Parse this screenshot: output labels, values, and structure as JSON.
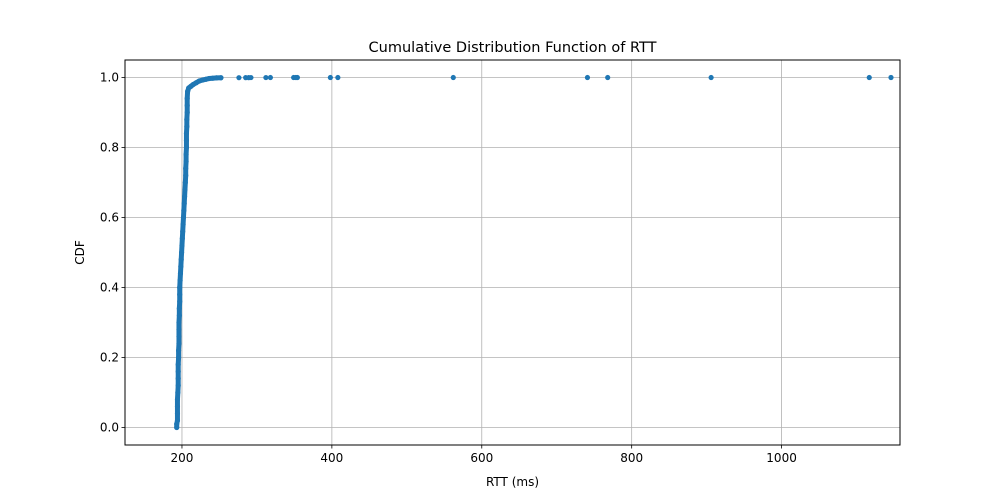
{
  "chart_data": {
    "type": "scatter",
    "title": "Cumulative Distribution Function of RTT",
    "xlabel": "RTT (ms)",
    "ylabel": "CDF",
    "xlim": [
      124,
      1158
    ],
    "ylim": [
      -0.05,
      1.05
    ],
    "x_ticks": [
      {
        "value": 200,
        "label": "200"
      },
      {
        "value": 400,
        "label": "400"
      },
      {
        "value": 600,
        "label": "600"
      },
      {
        "value": 800,
        "label": "800"
      },
      {
        "value": 1000,
        "label": "1000"
      }
    ],
    "y_ticks": [
      {
        "value": 0.0,
        "label": "0.0"
      },
      {
        "value": 0.2,
        "label": "0.2"
      },
      {
        "value": 0.4,
        "label": "0.4"
      },
      {
        "value": 0.6,
        "label": "0.6"
      },
      {
        "value": 0.8,
        "label": "0.8"
      },
      {
        "value": 1.0,
        "label": "1.0"
      }
    ],
    "grid": true,
    "marker_color": "#1f77b4",
    "series": [
      {
        "points": [
          [
            193,
            0.0
          ],
          [
            193,
            0.01
          ],
          [
            194,
            0.02
          ],
          [
            194,
            0.04
          ],
          [
            194,
            0.06
          ],
          [
            194,
            0.08
          ],
          [
            194.5,
            0.1
          ],
          [
            195,
            0.12
          ],
          [
            195,
            0.14
          ],
          [
            195,
            0.16
          ],
          [
            195,
            0.18
          ],
          [
            195.5,
            0.2
          ],
          [
            195.5,
            0.22
          ],
          [
            196,
            0.24
          ],
          [
            196,
            0.26
          ],
          [
            196,
            0.28
          ],
          [
            196,
            0.3
          ],
          [
            196.5,
            0.32
          ],
          [
            196.5,
            0.34
          ],
          [
            197,
            0.36
          ],
          [
            197,
            0.38
          ],
          [
            197,
            0.4
          ],
          [
            197.5,
            0.42
          ],
          [
            198,
            0.44
          ],
          [
            198.5,
            0.46
          ],
          [
            199,
            0.48
          ],
          [
            199.5,
            0.5
          ],
          [
            200,
            0.52
          ],
          [
            200.5,
            0.54
          ],
          [
            201,
            0.56
          ],
          [
            201.5,
            0.58
          ],
          [
            202,
            0.6
          ],
          [
            202.5,
            0.62
          ],
          [
            203,
            0.64
          ],
          [
            203.5,
            0.66
          ],
          [
            204,
            0.68
          ],
          [
            204.5,
            0.7
          ],
          [
            205,
            0.72
          ],
          [
            205,
            0.74
          ],
          [
            205.5,
            0.76
          ],
          [
            205.5,
            0.78
          ],
          [
            206,
            0.8
          ],
          [
            206,
            0.82
          ],
          [
            206,
            0.84
          ],
          [
            206.5,
            0.86
          ],
          [
            206.5,
            0.88
          ],
          [
            207,
            0.9
          ],
          [
            207,
            0.92
          ],
          [
            207,
            0.94
          ],
          [
            207.5,
            0.96
          ],
          [
            209,
            0.97
          ],
          [
            212,
            0.975
          ],
          [
            215,
            0.98
          ],
          [
            219,
            0.985
          ],
          [
            223,
            0.99
          ],
          [
            228,
            0.993
          ],
          [
            232,
            0.995
          ],
          [
            236,
            0.997
          ],
          [
            241,
            0.998
          ],
          [
            246,
            0.999
          ],
          [
            252,
            0.9993
          ],
          [
            276,
            0.9995
          ],
          [
            285,
            0.9996
          ],
          [
            289,
            0.9997
          ],
          [
            292,
            0.9998
          ],
          [
            312,
            0.9998
          ],
          [
            318,
            0.9999
          ],
          [
            349,
            0.9999
          ],
          [
            352,
            0.9999
          ],
          [
            354,
            0.9999
          ],
          [
            398,
            0.9999
          ],
          [
            408,
            0.9999
          ],
          [
            562,
            0.9999
          ],
          [
            741,
            0.9999
          ],
          [
            768,
            0.9999
          ],
          [
            906,
            0.9999
          ],
          [
            1117,
            0.9999
          ],
          [
            1146,
            1.0
          ]
        ]
      }
    ]
  }
}
